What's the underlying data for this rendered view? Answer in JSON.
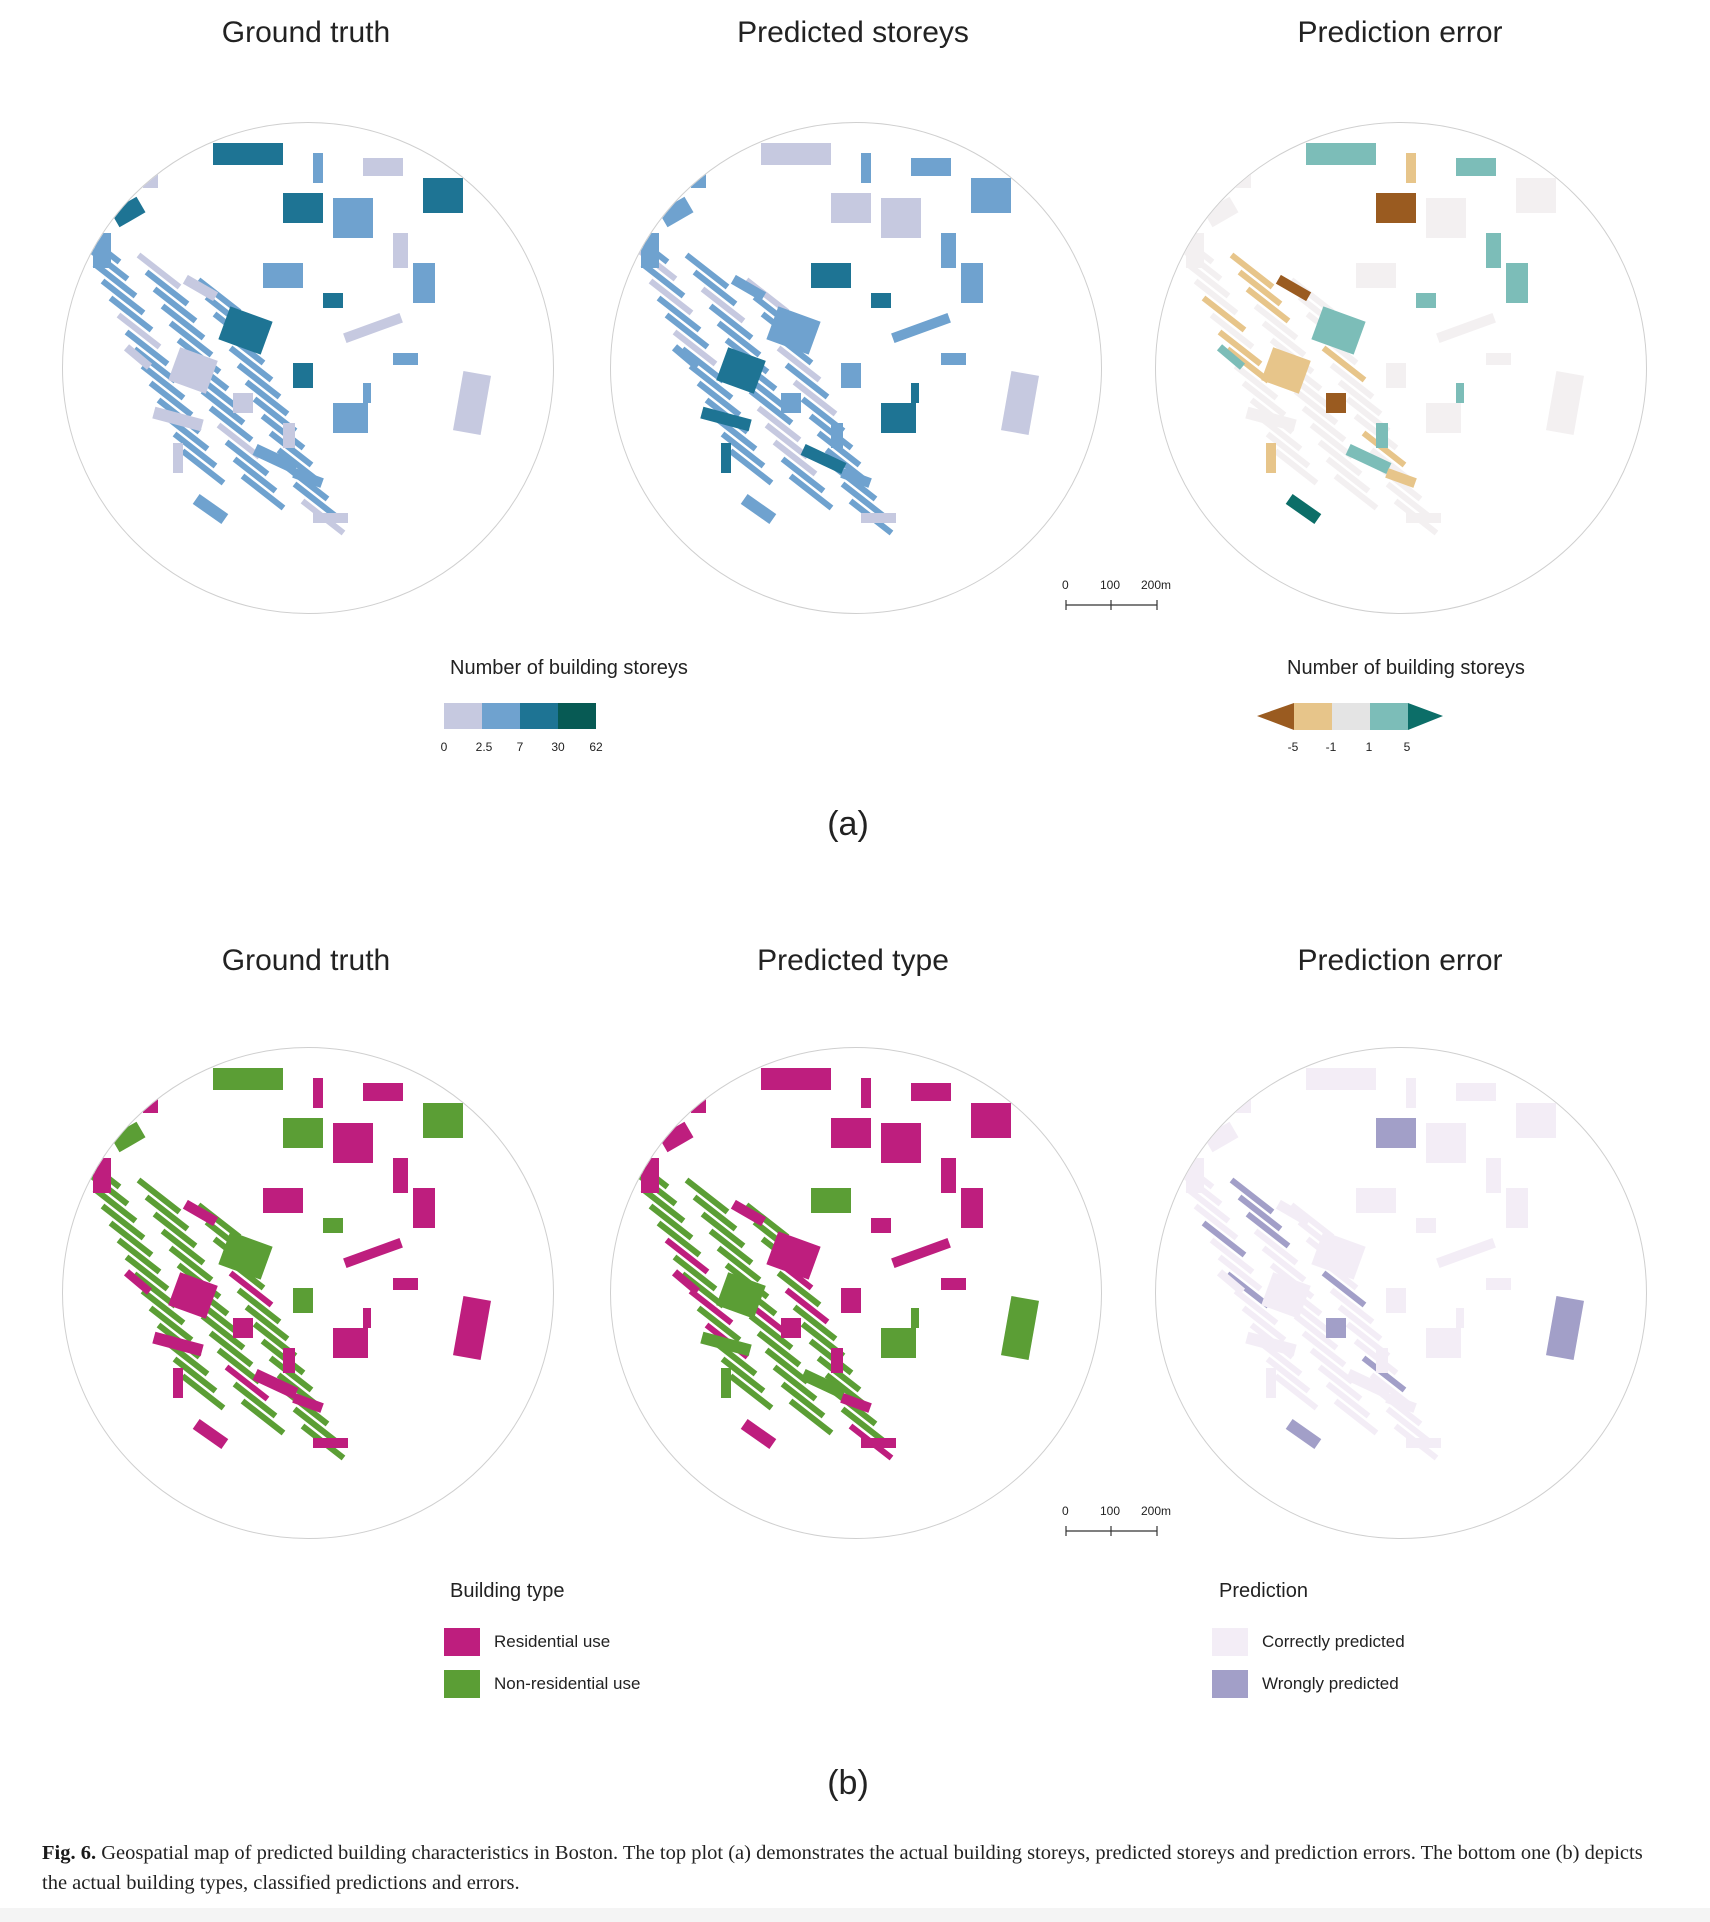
{
  "panel_a": {
    "titles": [
      "Ground truth",
      "Predicted storeys",
      "Prediction error"
    ],
    "legend_left": {
      "title": "Number of building storeys",
      "ticks": [
        "0",
        "2.5",
        "7",
        "30",
        "62"
      ],
      "colors": [
        "#c6c9e0",
        "#6fa2cf",
        "#1e7494",
        "#075a54"
      ]
    },
    "legend_right": {
      "title": "Number of building storeys",
      "ticks": [
        "-5",
        "-1",
        "1",
        "5"
      ],
      "colors": [
        "#9a5b20",
        "#e7c58a",
        "#e4e4e4",
        "#7cbdb8",
        "#0c6e68"
      ]
    },
    "label": "(a)"
  },
  "panel_b": {
    "titles": [
      "Ground truth",
      "Predicted type",
      "Prediction error"
    ],
    "legend_left": {
      "title": "Building type",
      "items": [
        {
          "label": "Residential use",
          "color": "#be1e7e"
        },
        {
          "label": "Non-residential use",
          "color": "#5b9e35"
        }
      ]
    },
    "legend_right": {
      "title": "Prediction",
      "items": [
        {
          "label": "Correctly predicted",
          "color": "#f3edf6"
        },
        {
          "label": "Wrongly predicted",
          "color": "#a29fc8"
        }
      ]
    },
    "label": "(b)"
  },
  "scale_bar": {
    "labels": [
      "0",
      "100",
      "200m"
    ]
  },
  "caption": {
    "fig_label": "Fig. 6.",
    "text": "Geospatial map of predicted building characteristics in Boston. The top plot (a) demonstrates the actual building storeys, predicted storeys and prediction errors. The bottom one (b) depicts the actual building types, classified predictions and errors."
  }
}
